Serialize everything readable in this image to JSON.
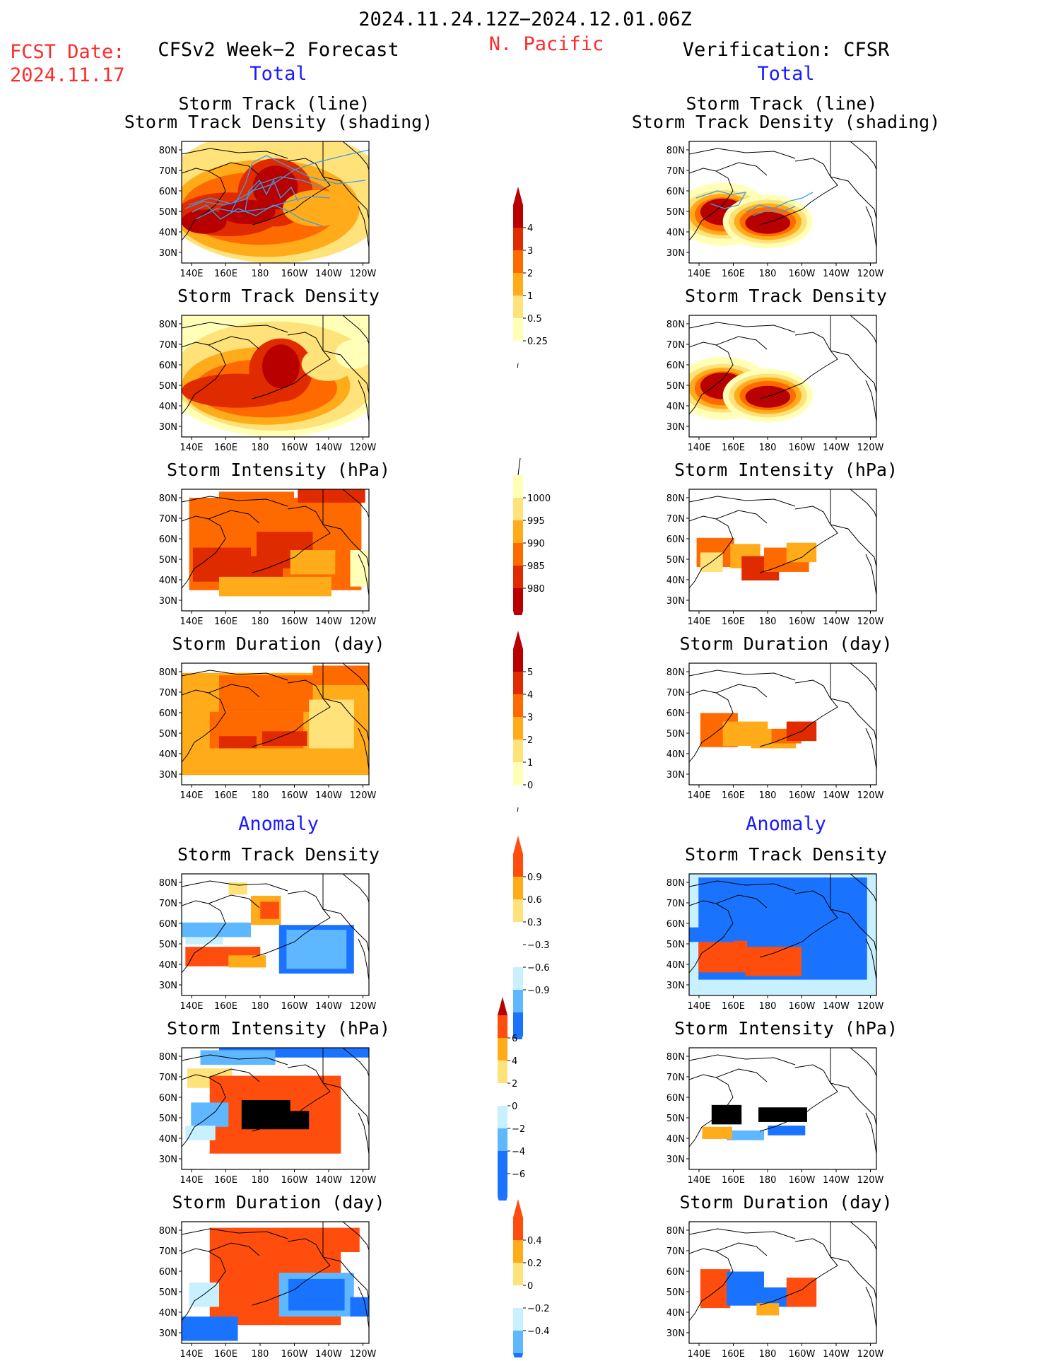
{
  "header": {
    "title": "2024.11.24.12Z−2024.12.01.06Z",
    "region": "N. Pacific",
    "fcst_label": "FCST Date:",
    "fcst_date": "2024.11.17",
    "left_title": "CFSv2 Week−2 Forecast",
    "right_title": "Verification: CFSR",
    "total_label": "Total",
    "anomaly_label": "Anomaly"
  },
  "panel_titles": {
    "track_line": "Storm Track (line)",
    "track_shade": "Storm Track Density (shading)",
    "density": "Storm Track Density",
    "intensity": "Storm Intensity (hPa)",
    "duration": "Storm Duration (day)"
  },
  "axes": {
    "lat_ticks": [
      "80N",
      "70N",
      "60N",
      "50N",
      "40N",
      "30N"
    ],
    "lon_ticks": [
      "140E",
      "160E",
      "180",
      "160W",
      "140W",
      "120W"
    ]
  },
  "colors": {
    "warm": [
      "#ffffb8",
      "#ffe27a",
      "#ffab1a",
      "#ff6a00",
      "#e02a00",
      "#b80000"
    ],
    "anom_pos": [
      "#ffe27a",
      "#ffab1a",
      "#ff4d0d"
    ],
    "anom_neg": [
      "#c8f0ff",
      "#5fb8ff",
      "#1a73ff"
    ]
  },
  "colorbars": [
    {
      "name": "density",
      "labels": [
        "4",
        "3",
        "2",
        "1",
        "0.5",
        "0.25"
      ]
    },
    {
      "name": "intensity",
      "labels": [
        "1000",
        "995",
        "990",
        "985",
        "980"
      ]
    },
    {
      "name": "duration",
      "labels": [
        "5",
        "4",
        "3",
        "2",
        "1",
        "0"
      ]
    },
    {
      "name": "anom-density",
      "labels": [
        "0.9",
        "0.6",
        "0.3",
        "−0.3",
        "−0.6",
        "−0.9"
      ]
    },
    {
      "name": "anom-intensity",
      "labels": [
        "6",
        "4",
        "2",
        "0",
        "−2",
        "−4",
        "−6"
      ]
    },
    {
      "name": "anom-duration",
      "labels": [
        "0.4",
        "0.2",
        "0",
        "−0.2",
        "−0.4"
      ]
    }
  ],
  "chart_data": [
    {
      "type": "heatmap",
      "panel": "forecast-total-track",
      "title": "Storm Track (line) / Storm Track Density (shading)",
      "field": "forecast"
    },
    {
      "type": "heatmap",
      "panel": "forecast-total-density",
      "title": "Storm Track Density",
      "field": "forecast"
    },
    {
      "type": "heatmap",
      "panel": "forecast-total-intensity",
      "title": "Storm Intensity (hPa)",
      "field": "forecast"
    },
    {
      "type": "heatmap",
      "panel": "forecast-total-duration",
      "title": "Storm Duration (day)",
      "field": "forecast"
    },
    {
      "type": "heatmap",
      "panel": "verif-total-track",
      "title": "Storm Track (line) / Storm Track Density (shading)",
      "field": "verification"
    },
    {
      "type": "heatmap",
      "panel": "verif-total-density",
      "title": "Storm Track Density",
      "field": "verification"
    },
    {
      "type": "heatmap",
      "panel": "verif-total-intensity",
      "title": "Storm Intensity (hPa)",
      "field": "verification"
    },
    {
      "type": "heatmap",
      "panel": "verif-total-duration",
      "title": "Storm Duration (day)",
      "field": "verification"
    },
    {
      "type": "heatmap",
      "panel": "forecast-anom-density",
      "title": "Storm Track Density",
      "field": "forecast"
    },
    {
      "type": "heatmap",
      "panel": "forecast-anom-intensity",
      "title": "Storm Intensity (hPa)",
      "field": "forecast"
    },
    {
      "type": "heatmap",
      "panel": "forecast-anom-duration",
      "title": "Storm Duration (day)",
      "field": "forecast"
    },
    {
      "type": "heatmap",
      "panel": "verif-anom-density",
      "title": "Storm Track Density",
      "field": "verification"
    },
    {
      "type": "heatmap",
      "panel": "verif-anom-intensity",
      "title": "Storm Intensity (hPa)",
      "field": "verification"
    },
    {
      "type": "heatmap",
      "panel": "verif-anom-duration",
      "title": "Storm Duration (day)",
      "field": "verification"
    }
  ]
}
